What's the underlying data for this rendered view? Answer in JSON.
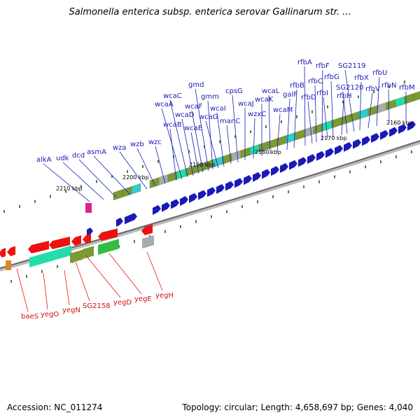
{
  "title": "Salmonella enterica subsp. enterica serovar Gallinarum str. ...",
  "footer": {
    "accession": "Accession: NC_011274",
    "topology": "Topology: circular; Length: 4,658,697 bp; Genes: 4,040"
  },
  "colors": {
    "forward_cds": "#1a1ab8",
    "reverse_cds": "#ee1111",
    "backbone": "#888888",
    "cog_olive": "#7a9a35",
    "cog_cyan": "#33cccc",
    "cog_teal": "#22ddaa",
    "cog_gray": "#aaaaaa",
    "cog_magenta": "#dd2288",
    "tick_mark": "#338833"
  },
  "ticks": [
    {
      "label": "2210 kbp"
    },
    {
      "label": "2200 kbp"
    },
    {
      "label": "2190 kbp"
    },
    {
      "label": "2180 kbp"
    },
    {
      "label": "2170 kbp"
    },
    {
      "label": "2160 kbp"
    }
  ],
  "forward_genes": [
    "alkA",
    "udk",
    "dcd",
    "asmA",
    "wza",
    "wzb",
    "wzc",
    "wcaB",
    "wcaA",
    "wcaC",
    "wcaD",
    "wcaE",
    "wcaF",
    "gmd",
    "gmm",
    "wcaG",
    "wcaI",
    "manC",
    "cpsG",
    "wcaJ",
    "wzxC",
    "wcaK",
    "wcaL",
    "wcaM",
    "galF",
    "rfbB",
    "rfbA",
    "rfbD",
    "rfbC",
    "rfbF",
    "rfbI",
    "rfbG",
    "rfbH",
    "SG2120",
    "SG2119",
    "rfbX",
    "rfbV",
    "rfbU",
    "rfbN",
    "rfbM"
  ],
  "reverse_genes": [
    "baeS",
    "yegO",
    "yegN",
    "SG2158",
    "yegD",
    "yegE",
    "yegH"
  ]
}
